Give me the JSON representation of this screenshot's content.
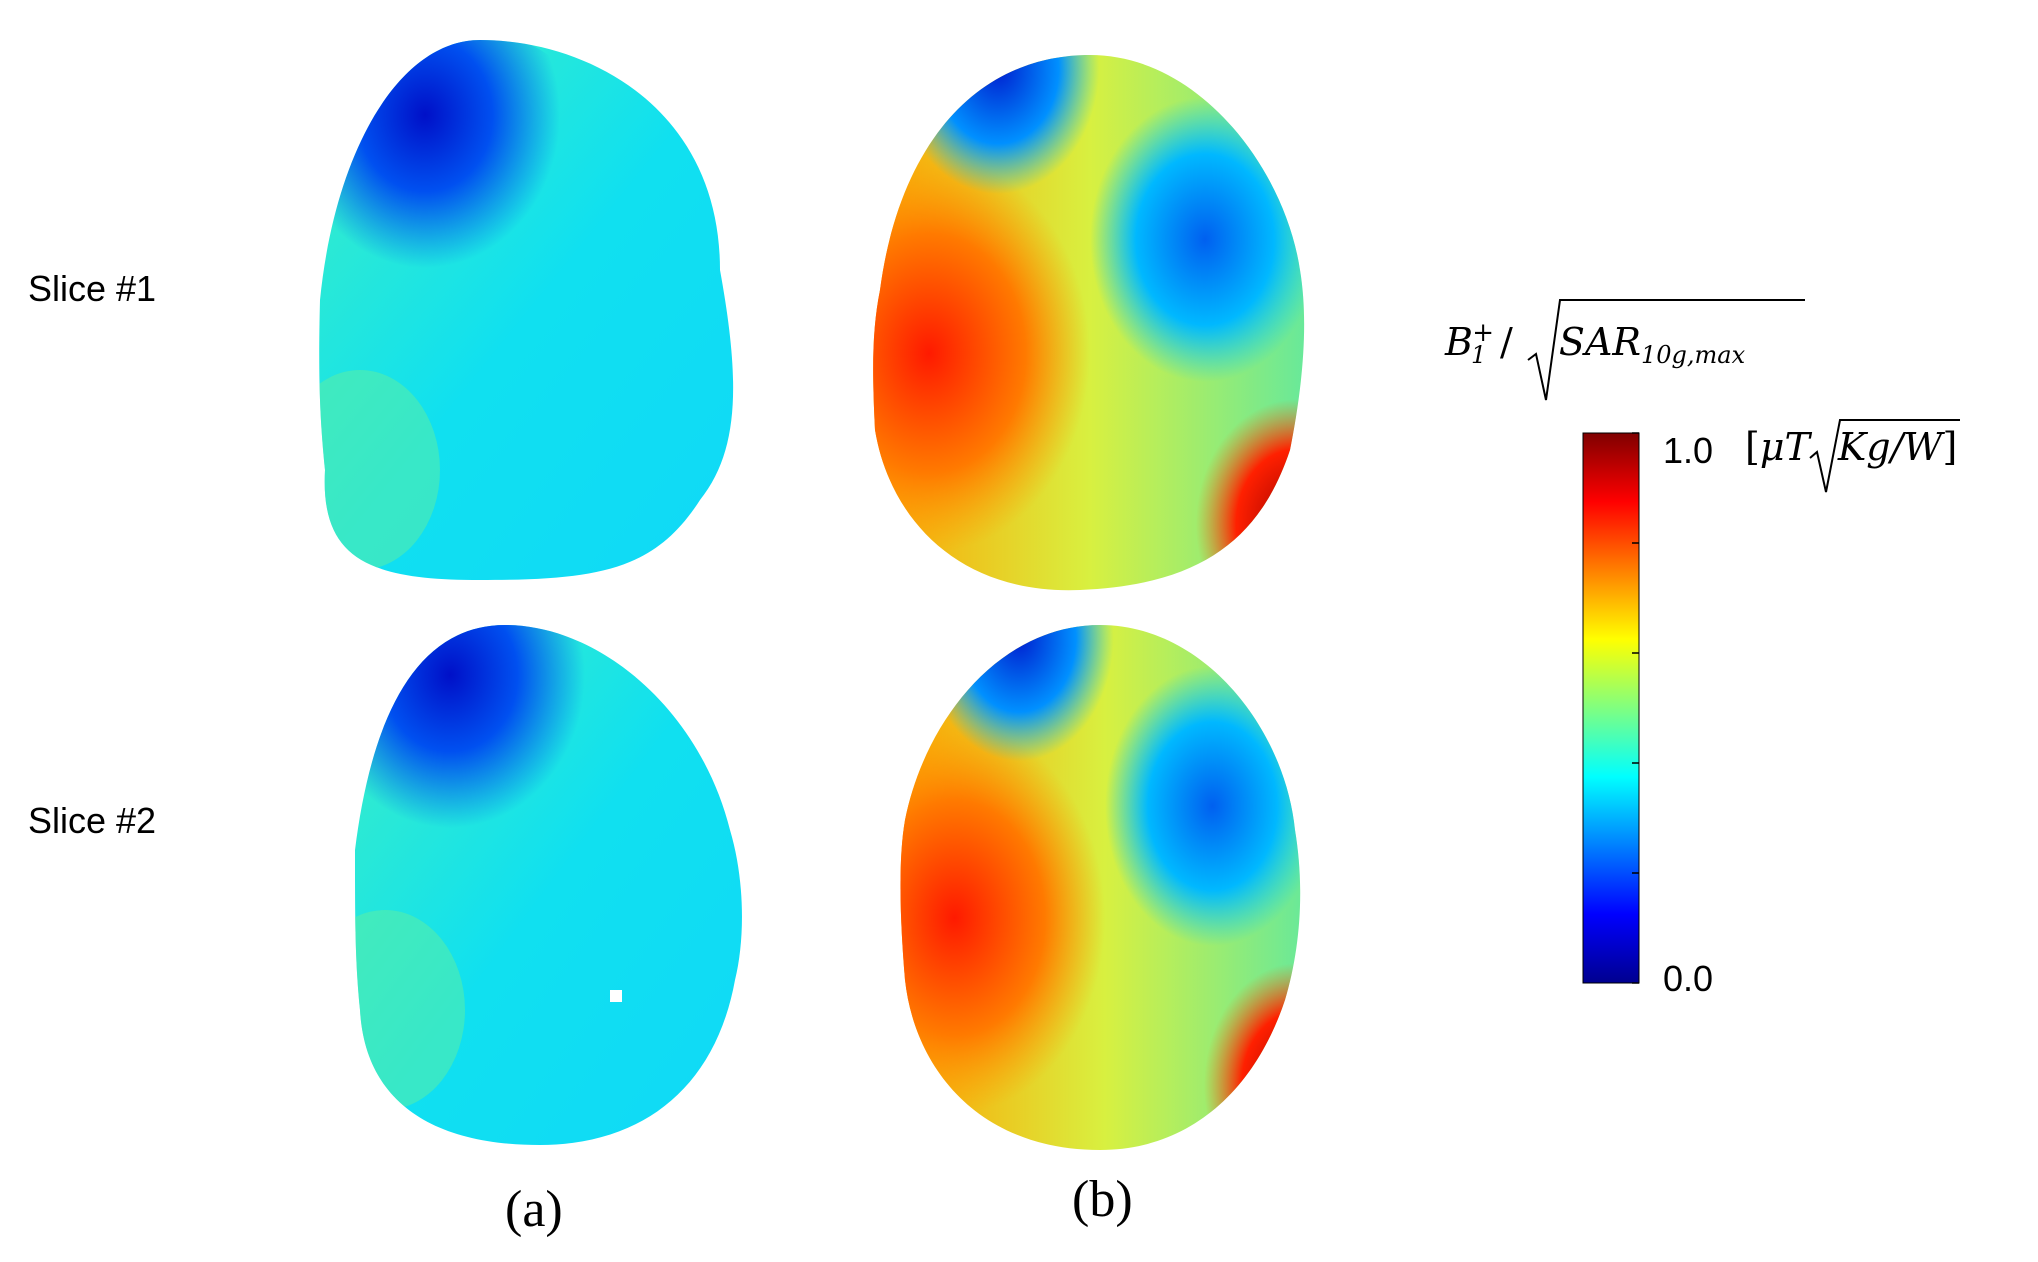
{
  "row_labels": [
    "Slice #1",
    "Slice #2"
  ],
  "column_labels": [
    "(a)",
    "(b)"
  ],
  "colorbar": {
    "title": {
      "numerator": "B",
      "numerator_sub": "1",
      "numerator_sup": "+",
      "divider": "/",
      "radicand": "SAR",
      "radicand_sub": "10g,max"
    },
    "max_label": "1.0",
    "min_label": "0.0",
    "unit": {
      "open": "[",
      "prefix": "μT",
      "radicand": "Kg/W",
      "close": "]"
    },
    "range": [
      0.0,
      1.0
    ],
    "colormap": "jet",
    "colors": [
      "#00008f",
      "#0000ff",
      "#0080ff",
      "#00ffff",
      "#80ff80",
      "#ffff00",
      "#ff8000",
      "#ff0000",
      "#800000"
    ]
  },
  "panels": [
    {
      "row": "Slice #1",
      "column": "(a)",
      "scheme": "a"
    },
    {
      "row": "Slice #1",
      "column": "(b)",
      "scheme": "b"
    },
    {
      "row": "Slice #2",
      "column": "(a)",
      "scheme": "a"
    },
    {
      "row": "Slice #2",
      "column": "(b)",
      "scheme": "b"
    }
  ]
}
